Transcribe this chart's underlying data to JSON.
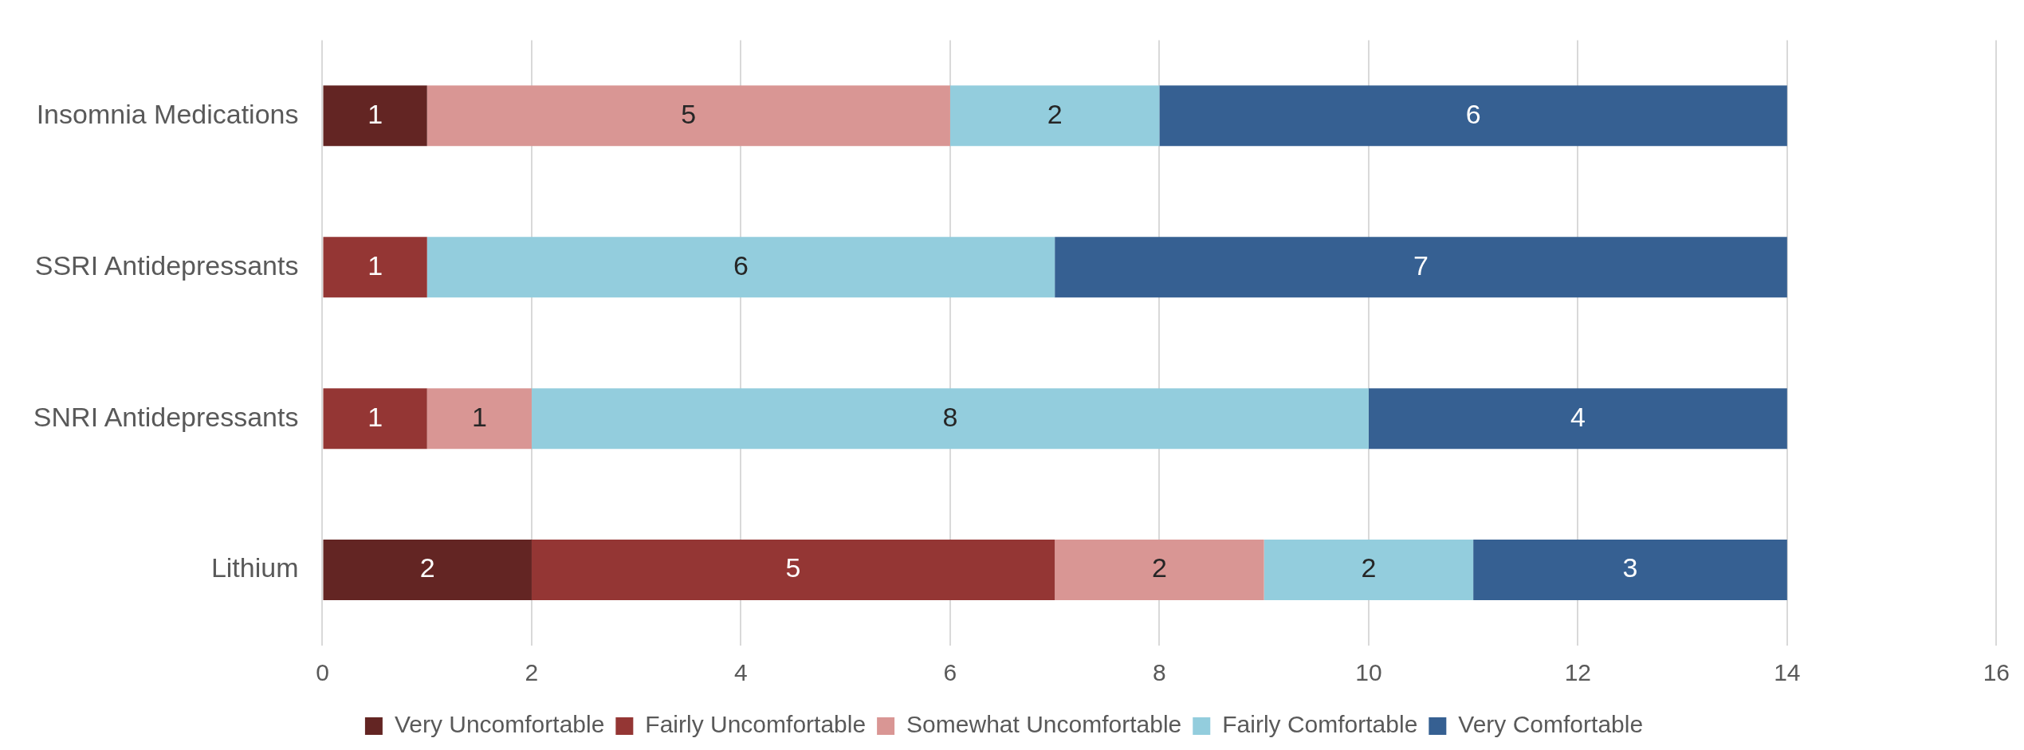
{
  "chart_data": {
    "type": "bar",
    "orientation": "horizontal",
    "stacked": true,
    "categories": [
      "Insomnia Medications",
      "SSRI Antidepressants",
      "SNRI Antidepressants",
      "Lithium"
    ],
    "series": [
      {
        "name": "Very Uncomfortable",
        "color": "#632523",
        "values": [
          1,
          null,
          null,
          2
        ]
      },
      {
        "name": "Fairly Uncomfortable",
        "color": "#943634",
        "values": [
          null,
          1,
          1,
          5
        ]
      },
      {
        "name": "Somewhat Uncomfortable",
        "color": "#d99694",
        "values": [
          5,
          null,
          1,
          2
        ]
      },
      {
        "name": "Fairly Comfortable",
        "color": "#93cddd",
        "values": [
          2,
          6,
          8,
          2
        ]
      },
      {
        "name": "Very Comfortable",
        "color": "#366092",
        "values": [
          6,
          7,
          4,
          3
        ]
      }
    ],
    "xlim": [
      0,
      16
    ],
    "xticks": [
      0,
      2,
      4,
      6,
      8,
      10,
      12,
      14,
      16
    ],
    "grid": "x",
    "legend": "bottom",
    "data_labels": true
  }
}
